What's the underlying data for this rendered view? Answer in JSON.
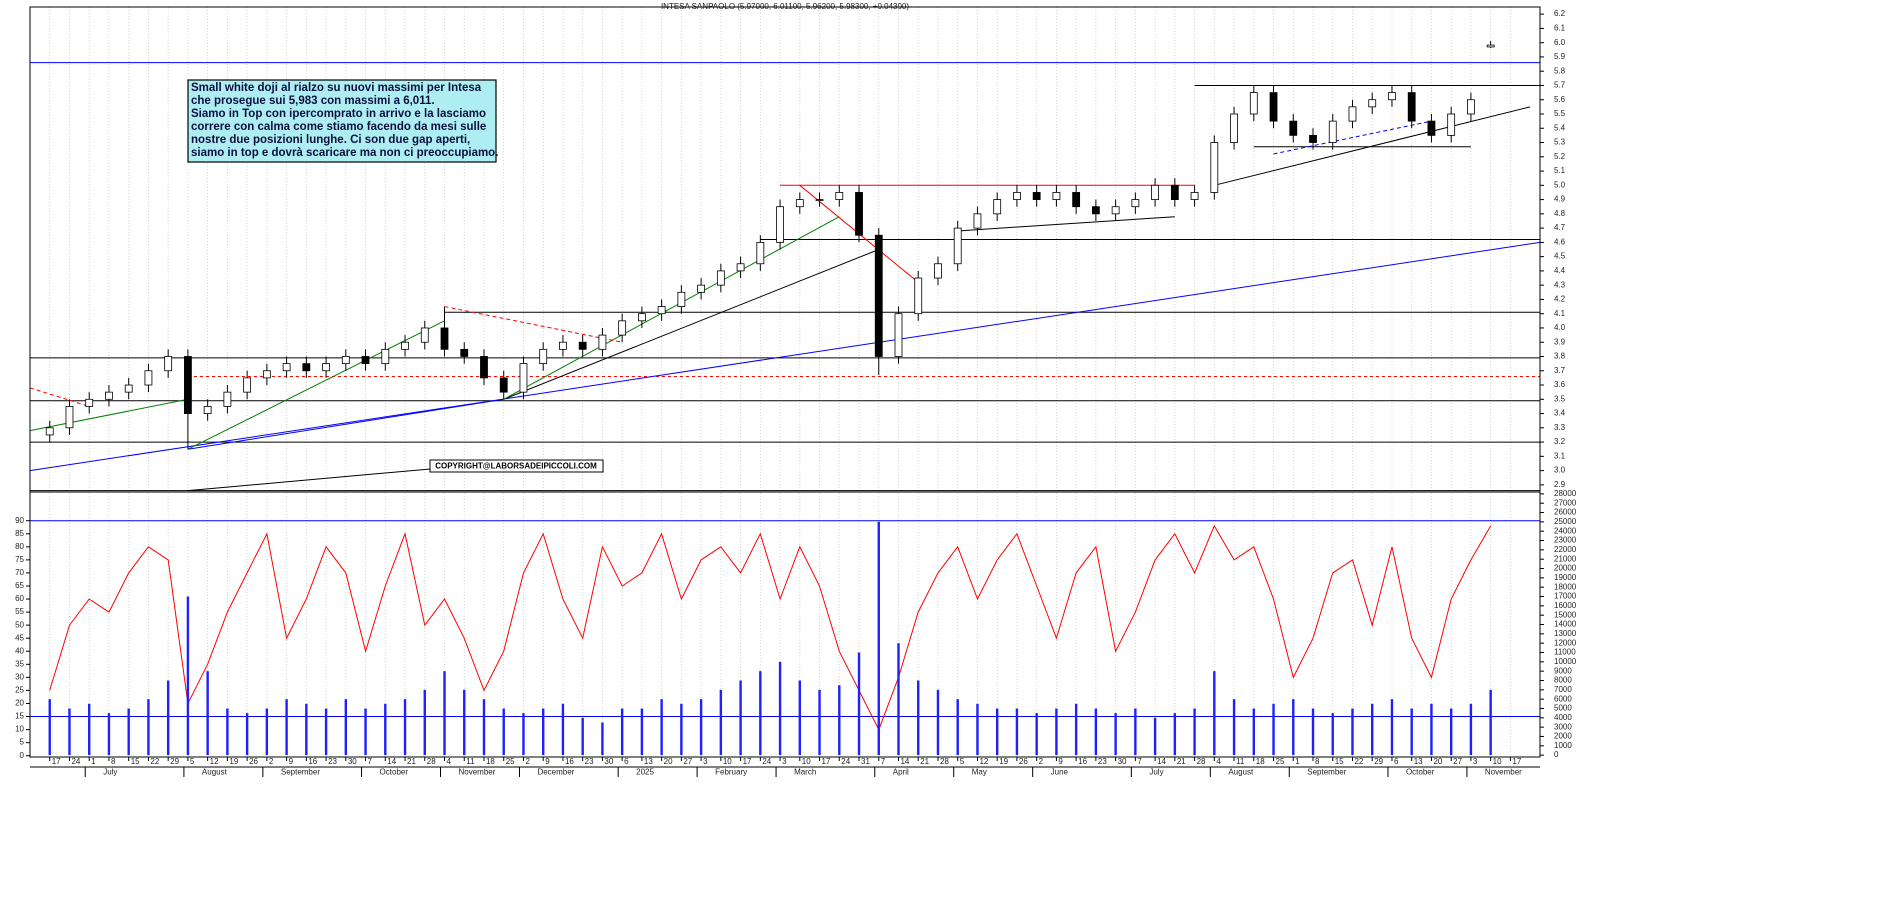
{
  "chart_data": [
    {
      "type": "candlestick",
      "title": "INTESA SANPAOLO (5.97000, 6.01100, 5.96200, 5.98300, +0.04300)",
      "annotation": [
        "Small white doji al rialzo su nuovi massimi per Intesa",
        "che prosegue sui 5,983 con massimi a 6,011.",
        "Siamo in Top con ipercomprato in arrivo e la lasciamo",
        "correre con calma come stiamo facendo da mesi sulle",
        "nostre due posizioni lunghe. Ci son due gap aperti,",
        "siamo in top e dovrà scaricare ma non ci preoccupiamo."
      ],
      "copyright": "COPYRIGHT@LABORSADEIPICCOLI.COM",
      "categories": [
        "17",
        "24",
        "1",
        "8",
        "15",
        "22",
        "29",
        "5",
        "12",
        "19",
        "26",
        "2",
        "9",
        "16",
        "23",
        "30",
        "7",
        "14",
        "21",
        "28",
        "4",
        "11",
        "18",
        "25",
        "2",
        "9",
        "16",
        "23",
        "30",
        "6",
        "13",
        "20",
        "27",
        "3",
        "10",
        "17",
        "24",
        "3",
        "10",
        "17",
        "24",
        "31",
        "7",
        "14",
        "21",
        "28",
        "5",
        "12",
        "19",
        "26",
        "2",
        "9",
        "16",
        "23",
        "30",
        "7",
        "14",
        "21",
        "28",
        "4",
        "11",
        "18",
        "25",
        "1",
        "8",
        "15",
        "22",
        "29",
        "6",
        "13",
        "20",
        "27",
        "3",
        "10",
        "17"
      ],
      "months": [
        {
          "value": 2,
          "label": "July"
        },
        {
          "value": 7,
          "label": "August"
        },
        {
          "value": 11,
          "label": "September"
        },
        {
          "value": 16,
          "label": "October"
        },
        {
          "value": 20,
          "label": "November"
        },
        {
          "value": 24,
          "label": "December"
        },
        {
          "value": 29,
          "label": "2025"
        },
        {
          "value": 33,
          "label": "February"
        },
        {
          "value": 37,
          "label": "March"
        },
        {
          "value": 42,
          "label": "April"
        },
        {
          "value": 46,
          "label": "May"
        },
        {
          "value": 50,
          "label": "June"
        },
        {
          "value": 55,
          "label": "July"
        },
        {
          "value": 59,
          "label": "August"
        },
        {
          "value": 63,
          "label": "September"
        },
        {
          "value": 68,
          "label": "October"
        },
        {
          "value": 72,
          "label": "November"
        }
      ],
      "open": [
        3.25,
        3.3,
        3.45,
        3.5,
        3.55,
        3.6,
        3.7,
        3.8,
        3.4,
        3.45,
        3.55,
        3.65,
        3.7,
        3.75,
        3.7,
        3.75,
        3.8,
        3.75,
        3.85,
        3.9,
        4.0,
        3.85,
        3.8,
        3.65,
        3.55,
        3.75,
        3.85,
        3.9,
        3.85,
        3.95,
        4.05,
        4.1,
        4.15,
        4.25,
        4.3,
        4.4,
        4.45,
        4.6,
        4.85,
        4.9,
        4.9,
        4.95,
        4.65,
        3.8,
        4.1,
        4.35,
        4.45,
        4.7,
        4.8,
        4.9,
        4.95,
        4.9,
        4.95,
        4.85,
        4.8,
        4.85,
        4.9,
        5.0,
        4.9,
        4.95,
        5.3,
        5.5,
        5.65,
        5.45,
        5.35,
        5.3,
        5.45,
        5.55,
        5.6,
        5.65,
        5.45,
        5.35,
        5.5,
        5.97,
        null
      ],
      "high": [
        3.35,
        3.5,
        3.55,
        3.6,
        3.65,
        3.75,
        3.85,
        3.85,
        3.5,
        3.6,
        3.7,
        3.75,
        3.8,
        3.8,
        3.8,
        3.85,
        3.85,
        3.9,
        3.95,
        4.05,
        4.15,
        3.9,
        3.85,
        3.7,
        3.8,
        3.9,
        3.95,
        3.95,
        4.0,
        4.1,
        4.15,
        4.2,
        4.3,
        4.35,
        4.45,
        4.5,
        4.65,
        4.9,
        4.95,
        4.95,
        5.0,
        5.0,
        4.7,
        4.15,
        4.4,
        4.5,
        4.75,
        4.85,
        4.95,
        5.0,
        5.0,
        5.0,
        5.0,
        4.9,
        4.9,
        4.95,
        5.05,
        5.05,
        5.0,
        5.35,
        5.55,
        5.7,
        5.7,
        5.5,
        5.4,
        5.5,
        5.6,
        5.65,
        5.7,
        5.7,
        5.5,
        5.55,
        5.65,
        6.011,
        null
      ],
      "low": [
        3.2,
        3.25,
        3.4,
        3.45,
        3.5,
        3.55,
        3.65,
        3.15,
        3.35,
        3.4,
        3.5,
        3.6,
        3.65,
        3.65,
        3.65,
        3.7,
        3.7,
        3.7,
        3.8,
        3.85,
        3.8,
        3.75,
        3.6,
        3.5,
        3.5,
        3.7,
        3.8,
        3.8,
        3.8,
        3.9,
        4.0,
        4.05,
        4.1,
        4.2,
        4.25,
        4.35,
        4.4,
        4.55,
        4.8,
        4.85,
        4.85,
        4.6,
        3.67,
        3.75,
        4.05,
        4.3,
        4.4,
        4.65,
        4.75,
        4.85,
        4.85,
        4.85,
        4.8,
        4.75,
        4.75,
        4.8,
        4.85,
        4.85,
        4.85,
        4.9,
        5.25,
        5.45,
        5.4,
        5.3,
        5.25,
        5.25,
        5.4,
        5.5,
        5.55,
        5.4,
        5.3,
        5.3,
        5.45,
        5.962,
        null
      ],
      "close": [
        3.3,
        3.45,
        3.5,
        3.55,
        3.6,
        3.7,
        3.8,
        3.4,
        3.45,
        3.55,
        3.65,
        3.7,
        3.75,
        3.7,
        3.75,
        3.8,
        3.75,
        3.85,
        3.9,
        4.0,
        3.85,
        3.8,
        3.65,
        3.55,
        3.75,
        3.85,
        3.9,
        3.85,
        3.95,
        4.05,
        4.1,
        4.15,
        4.25,
        4.3,
        4.4,
        4.45,
        4.6,
        4.85,
        4.9,
        4.9,
        4.95,
        4.65,
        3.8,
        4.1,
        4.35,
        4.45,
        4.7,
        4.8,
        4.9,
        4.95,
        4.9,
        4.95,
        4.85,
        4.8,
        4.85,
        4.9,
        5.0,
        4.9,
        4.95,
        5.3,
        5.5,
        5.65,
        5.45,
        5.35,
        5.3,
        5.45,
        5.55,
        5.6,
        5.65,
        5.45,
        5.35,
        5.5,
        5.6,
        5.983,
        null
      ],
      "up_color": "#ffffff",
      "down_color": "#000000",
      "xlim": [
        -1,
        75.5
      ],
      "ylim": [
        2.85,
        6.25
      ],
      "yticks": [
        2.9,
        {
          "value": 3,
          "label": "3.0"
        },
        3.1,
        3.2,
        3.3,
        3.4,
        3.5,
        3.6,
        3.7,
        3.8,
        3.9,
        {
          "value": 4,
          "label": "4.0"
        },
        4.1,
        4.2,
        4.3,
        4.4,
        4.5,
        4.6,
        4.7,
        4.8,
        4.9,
        {
          "value": 5,
          "label": "5.0"
        },
        5.1,
        5.2,
        5.3,
        5.4,
        5.5,
        5.6,
        5.7,
        5.8,
        5.9,
        {
          "value": 6,
          "label": "6.0"
        },
        6.1,
        6.2
      ],
      "grid": true,
      "levels": [
        {
          "value": 5.86,
          "color": "#0000ff",
          "x0": -1,
          "x1": 75.5
        },
        {
          "value": 5.7,
          "color": "#000000",
          "x0": 58,
          "x1": 75.5
        },
        {
          "value": 5.27,
          "color": "#000000",
          "x0": 61,
          "x1": 72
        },
        {
          "value": 5.0,
          "color": "#ff0000",
          "x0": 37,
          "x1": 58
        },
        {
          "value": 4.62,
          "color": "#000000",
          "x0": 36,
          "x1": 75.5
        },
        {
          "value": 4.11,
          "color": "#000000",
          "x0": 20,
          "x1": 75.5
        },
        {
          "value": 3.79,
          "color": "#000000",
          "x0": -1,
          "x1": 75.5
        },
        {
          "value": 3.66,
          "color": "#ff0000",
          "x0": 7,
          "x1": 75.5,
          "dash": true
        },
        {
          "value": 3.49,
          "color": "#000000",
          "x0": -1,
          "x1": 75.5
        },
        {
          "value": 3.2,
          "color": "#000000",
          "x0": -1,
          "x1": 75.5
        },
        {
          "value": 2.86,
          "color": "#000000",
          "x0": -1,
          "x1": 75.5
        }
      ],
      "trendlines": [
        {
          "color": "#0000ff",
          "points": [
            [
              -1,
              3.0
            ],
            [
              75.5,
              4.6
            ]
          ]
        },
        {
          "color": "#0000ff",
          "points": [
            [
              7,
              3.15
            ],
            [
              23,
              3.5
            ]
          ]
        },
        {
          "color": "#000000",
          "points": [
            [
              23,
              3.5
            ],
            [
              42,
              4.55
            ]
          ]
        },
        {
          "color": "#008000",
          "points": [
            [
              -1,
              3.28
            ],
            [
              7,
              3.5
            ]
          ]
        },
        {
          "color": "#008000",
          "points": [
            [
              7,
              3.15
            ],
            [
              20,
              4.05
            ]
          ]
        },
        {
          "color": "#008000",
          "points": [
            [
              23,
              3.5
            ],
            [
              40,
              4.78
            ]
          ]
        },
        {
          "color": "#ff0000",
          "points": [
            [
              20,
              4.15
            ],
            [
              29,
              3.9
            ]
          ],
          "dash": true
        },
        {
          "color": "#ff0000",
          "points": [
            [
              -1,
              3.58
            ],
            [
              2,
              3.45
            ]
          ],
          "dash": true
        },
        {
          "color": "#ff0000",
          "points": [
            [
              38,
              5.0
            ],
            [
              44,
              4.32
            ]
          ]
        },
        {
          "color": "#000000",
          "points": [
            [
              46,
              4.68
            ],
            [
              57,
              4.78
            ]
          ]
        },
        {
          "color": "#000000",
          "points": [
            [
              59,
              5.0
            ],
            [
              75,
              5.55
            ]
          ]
        },
        {
          "color": "#0000ff",
          "points": [
            [
              62,
              5.22
            ],
            [
              70,
              5.45
            ]
          ],
          "dash": true
        },
        {
          "color": "#000000",
          "points": [
            [
              7,
              2.86
            ],
            [
              20,
              3.02
            ]
          ]
        }
      ]
    },
    {
      "type": "oscillator-volume",
      "series": [
        {
          "color": "#ff0000",
          "values": [
            25,
            50,
            60,
            55,
            70,
            80,
            75,
            20,
            35,
            55,
            70,
            85,
            45,
            60,
            80,
            70,
            40,
            65,
            85,
            50,
            60,
            45,
            25,
            40,
            70,
            85,
            60,
            45,
            80,
            65,
            70,
            85,
            60,
            75,
            80,
            70,
            85,
            60,
            80,
            65,
            40,
            25,
            10,
            30,
            55,
            70,
            80,
            60,
            75,
            85,
            65,
            45,
            70,
            80,
            40,
            55,
            75,
            85,
            70,
            88,
            75,
            80,
            60,
            30,
            45,
            70,
            75,
            50,
            80,
            45,
            30,
            60,
            75,
            88,
            null
          ]
        },
        {
          "color": "#2020ff",
          "axis": "y2",
          "values": [
            6000,
            5000,
            5500,
            4500,
            5000,
            6000,
            8000,
            17000,
            9000,
            5000,
            4500,
            5000,
            6000,
            5500,
            5000,
            6000,
            5000,
            5500,
            6000,
            7000,
            9000,
            7000,
            6000,
            5000,
            4500,
            5000,
            5500,
            4000,
            3500,
            5000,
            5000,
            6000,
            5500,
            6000,
            7000,
            8000,
            9000,
            10000,
            8000,
            7000,
            7500,
            11000,
            25000,
            12000,
            8000,
            7000,
            6000,
            5500,
            5000,
            5000,
            4500,
            5000,
            5500,
            5000,
            4500,
            5000,
            4000,
            4500,
            5000,
            9000,
            6000,
            5000,
            5500,
            6000,
            5000,
            4500,
            5000,
            5500,
            6000,
            5000,
            5500,
            5000,
            5500,
            7000,
            null
          ]
        }
      ],
      "ylim": [
        -0.5,
        101
      ],
      "yticks": [
        0,
        5,
        10,
        15,
        20,
        25,
        30,
        35,
        40,
        45,
        50,
        55,
        60,
        65,
        70,
        75,
        80,
        85,
        90
      ],
      "y2lim": [
        -200,
        28200
      ],
      "y2ticks": [
        0,
        1000,
        2000,
        3000,
        4000,
        5000,
        6000,
        7000,
        8000,
        9000,
        10000,
        11000,
        12000,
        13000,
        14000,
        15000,
        16000,
        17000,
        18000,
        19000,
        20000,
        21000,
        22000,
        23000,
        24000,
        25000,
        26000,
        27000,
        28000
      ],
      "levels": [
        {
          "value": 90,
          "color": "#0000ff"
        },
        {
          "value": 15,
          "color": "#0000ff"
        }
      ]
    }
  ]
}
